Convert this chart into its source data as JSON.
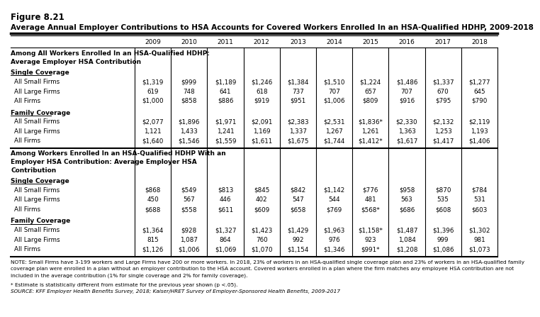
{
  "figure_label": "Figure 8.21",
  "title": "Average Annual Employer Contributions to HSA Accounts for Covered Workers Enrolled In an HSA-Qualified HDHP, 2009-2018",
  "years": [
    "2009",
    "2010",
    "2011",
    "2012",
    "2013",
    "2014",
    "2015",
    "2016",
    "2017",
    "2018"
  ],
  "sections": [
    {
      "header": [
        "Among All Workers Enrolled In an HSA-Qualified HDHP:",
        "Average Employer HSA Contribution"
      ],
      "subsections": [
        {
          "name": "Single Coverage",
          "rows": [
            {
              "label": "All Small Firms",
              "values": [
                "$1,319",
                "$999",
                "$1,189",
                "$1,246",
                "$1,384",
                "$1,510",
                "$1,224",
                "$1,486",
                "$1,337",
                "$1,277"
              ]
            },
            {
              "label": "All Large Firms",
              "values": [
                "619",
                "748",
                "641",
                "618",
                "737",
                "707",
                "657",
                "707",
                "670",
                "645"
              ]
            },
            {
              "label": "All Firms",
              "values": [
                "$1,000",
                "$858",
                "$886",
                "$919",
                "$951",
                "$1,006",
                "$809",
                "$916",
                "$795",
                "$790"
              ]
            }
          ]
        },
        {
          "name": "Family Coverage",
          "rows": [
            {
              "label": "All Small Firms",
              "values": [
                "$2,077",
                "$1,896",
                "$1,971",
                "$2,091",
                "$2,383",
                "$2,531",
                "$1,836*",
                "$2,330",
                "$2,132",
                "$2,119"
              ]
            },
            {
              "label": "All Large Firms",
              "values": [
                "1,121",
                "1,433",
                "1,241",
                "1,169",
                "1,337",
                "1,267",
                "1,261",
                "1,363",
                "1,253",
                "1,193"
              ]
            },
            {
              "label": "All Firms",
              "values": [
                "$1,640",
                "$1,546",
                "$1,559",
                "$1,611",
                "$1,675",
                "$1,744",
                "$1,412*",
                "$1,617",
                "$1,417",
                "$1,406"
              ]
            }
          ]
        }
      ]
    },
    {
      "header": [
        "Among Workers Enrolled In an HSA-Qualified HDHP With an",
        "Employer HSA Contribution: Average Employer HSA",
        "Contribution"
      ],
      "subsections": [
        {
          "name": "Single Coverage",
          "rows": [
            {
              "label": "All Small Firms",
              "values": [
                "$868",
                "$549",
                "$813",
                "$845",
                "$842",
                "$1,142",
                "$776",
                "$958",
                "$870",
                "$784"
              ]
            },
            {
              "label": "All Large Firms",
              "values": [
                "450",
                "567",
                "446",
                "402",
                "547",
                "544",
                "481",
                "563",
                "535",
                "531"
              ]
            },
            {
              "label": "All Firms",
              "values": [
                "$688",
                "$558",
                "$611",
                "$609",
                "$658",
                "$769",
                "$568*",
                "$686",
                "$608",
                "$603"
              ]
            }
          ]
        },
        {
          "name": "Family Coverage",
          "rows": [
            {
              "label": "All Small Firms",
              "values": [
                "$1,364",
                "$928",
                "$1,327",
                "$1,423",
                "$1,429",
                "$1,963",
                "$1,158*",
                "$1,487",
                "$1,396",
                "$1,302"
              ]
            },
            {
              "label": "All Large Firms",
              "values": [
                "815",
                "1,087",
                "864",
                "760",
                "992",
                "976",
                "923",
                "1,084",
                "999",
                "981"
              ]
            },
            {
              "label": "All Firms",
              "values": [
                "$1,126",
                "$1,006",
                "$1,069",
                "$1,070",
                "$1,154",
                "$1,346",
                "$991*",
                "$1,208",
                "$1,086",
                "$1,073"
              ]
            }
          ]
        }
      ]
    }
  ],
  "note_lines": [
    "NOTE: Small Firms have 3-199 workers and Large Firms have 200 or more workers. In 2018, 23% of workers in an HSA-qualified single coverage plan and 23% of workers in an HSA-qualified family",
    "coverage plan were enrolled in a plan without an employer contribution to the HSA account. Covered workers enrolled in a plan where the firm matches any employee HSA contribution are not",
    "included in the average contribution (1% for single coverage and 2% for family coverage)."
  ],
  "asterisk_note": "* Estimate is statistically different from estimate for the previous year shown (p <.05).",
  "source": "SOURCE: KFF Employer Health Benefits Survey, 2018; Kaiser/HRET Survey of Employer-Sponsored Health Benefits, 2009-2017"
}
